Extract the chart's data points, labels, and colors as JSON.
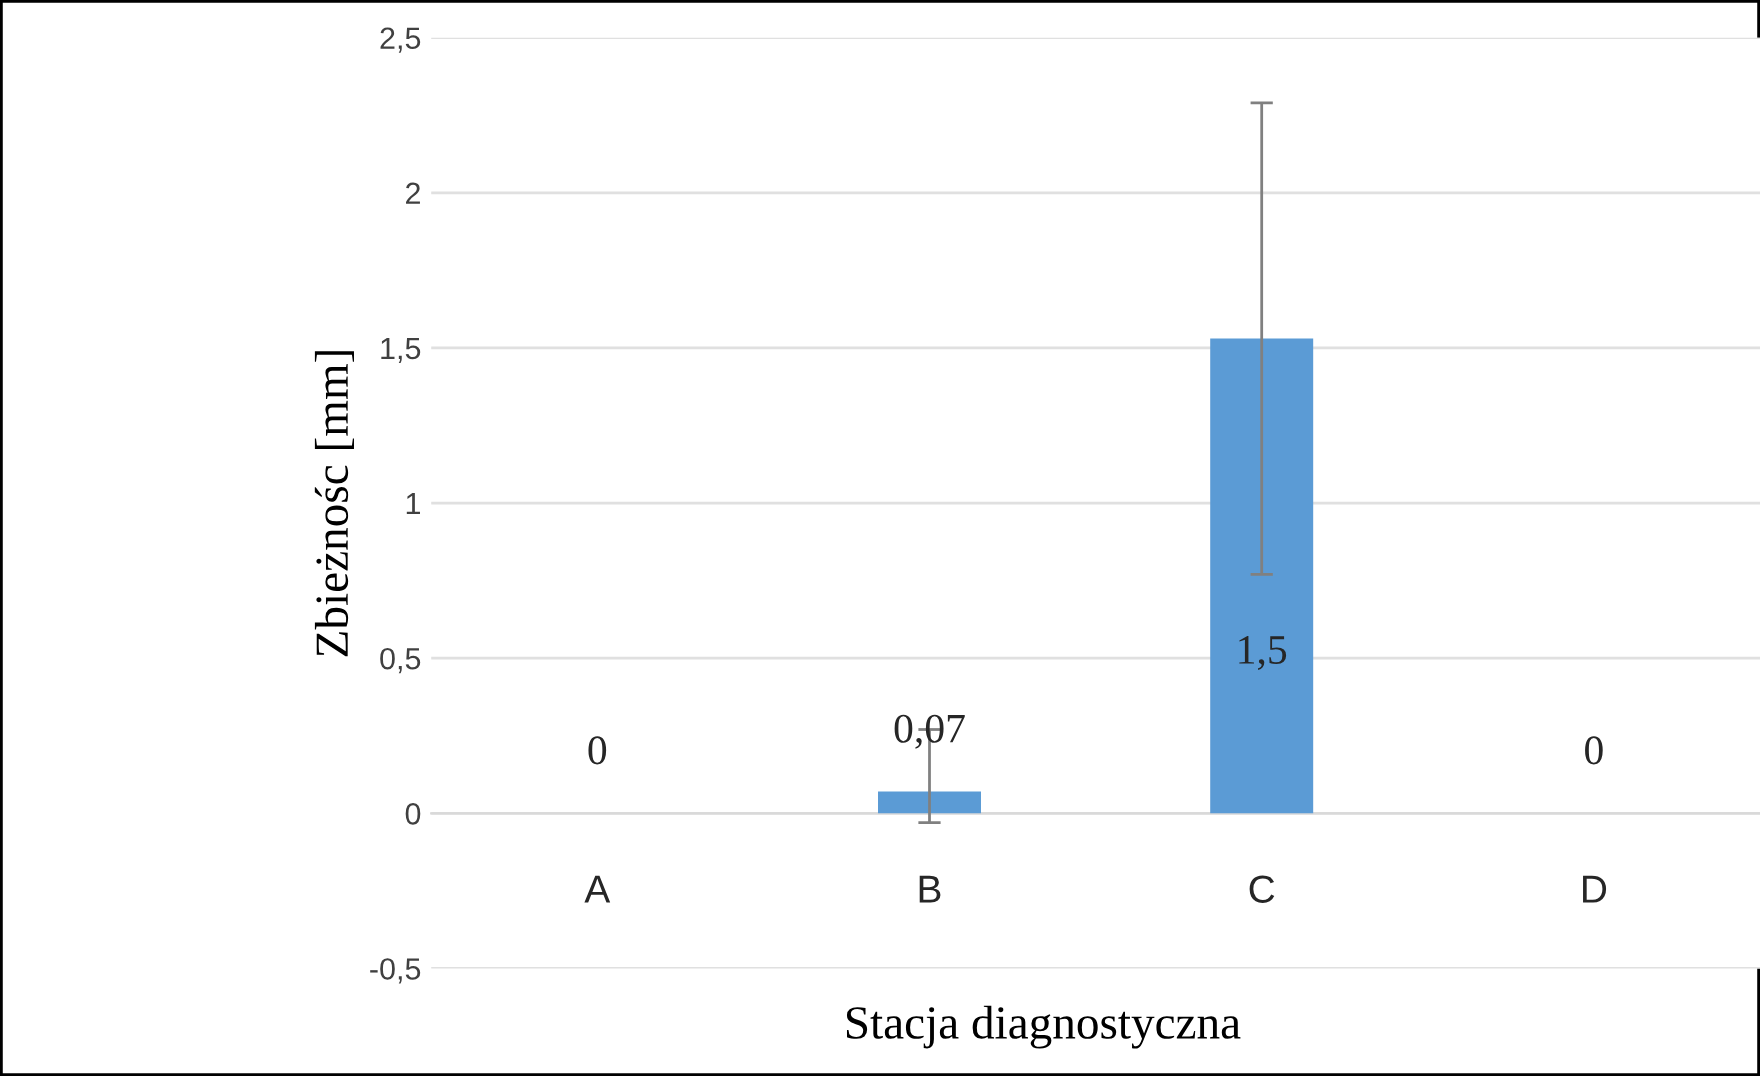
{
  "chart_data": {
    "type": "bar",
    "xlabel": "Stacja diagnostyczna",
    "ylabel": "Zbieżnośc [mm]",
    "categories": [
      "A",
      "B",
      "C",
      "D"
    ],
    "values": [
      0,
      0.07,
      1.53,
      0
    ],
    "value_labels": [
      "0",
      "0,07",
      "1,5",
      "0"
    ],
    "errors": [
      null,
      [
        -0.03,
        0.27
      ],
      [
        0.77,
        2.29
      ],
      null
    ],
    "color": "#5b9bd5",
    "ylim": [
      -0.5,
      2.5
    ],
    "yticks": [
      {
        "value": -0.5,
        "label": "-0,5"
      },
      0,
      {
        "value": 0.5,
        "label": "0,5"
      },
      1,
      {
        "value": 1.5,
        "label": "1,5"
      },
      2,
      {
        "value": 2.5,
        "label": "2,5"
      }
    ],
    "grid": "y"
  }
}
